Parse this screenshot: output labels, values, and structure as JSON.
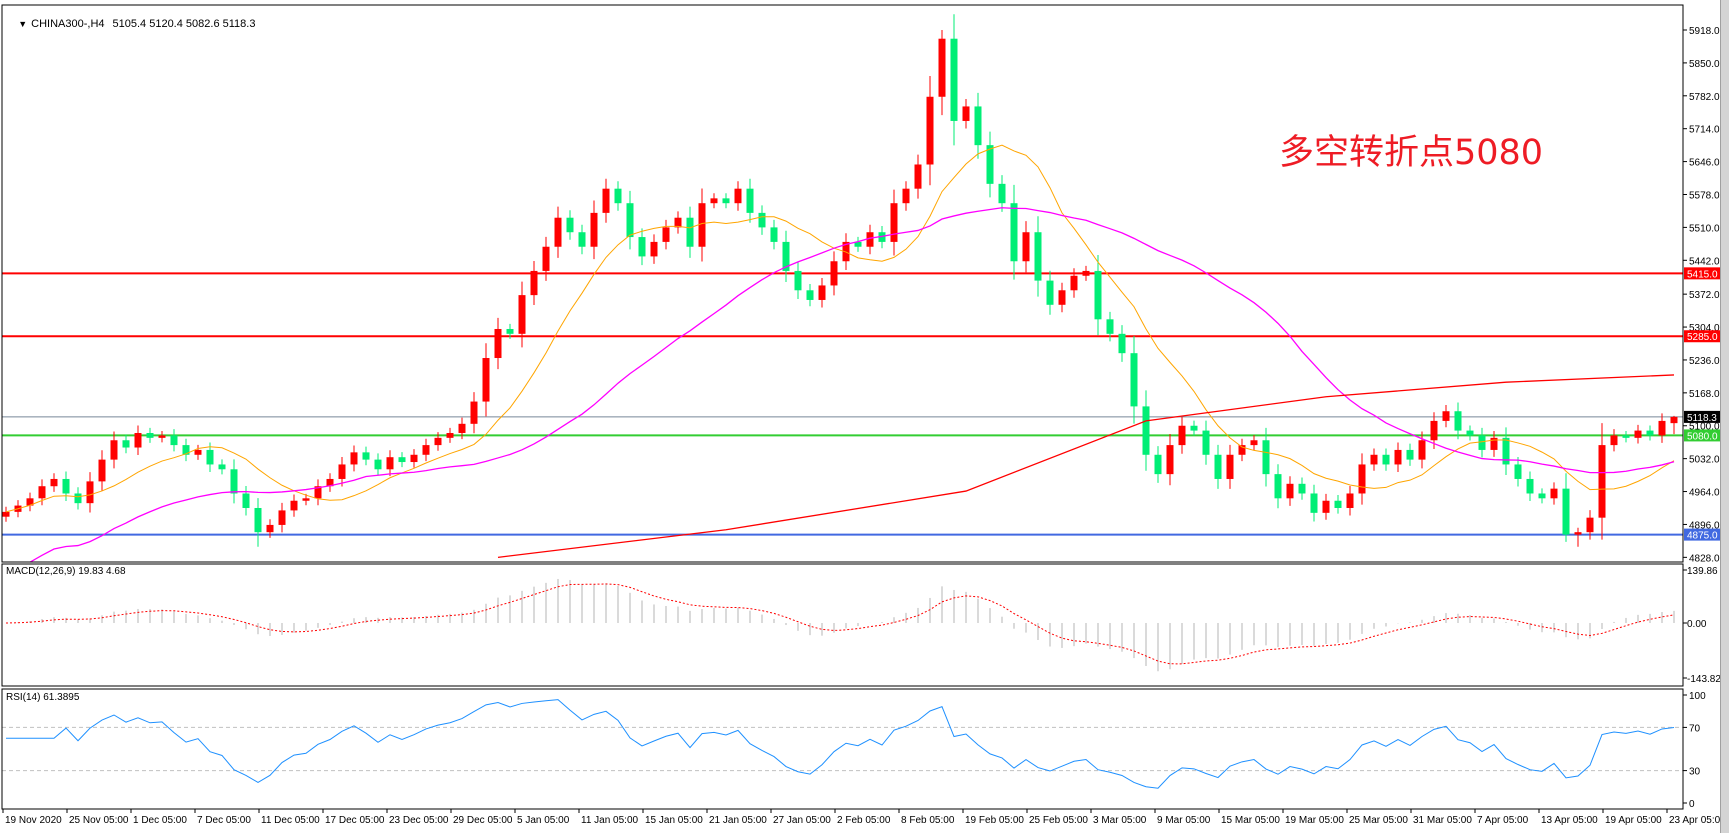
{
  "header": {
    "symbol": "CHINA300-,H4",
    "ohlc": "5105.4 5120.4 5082.6 5118.3",
    "menu_icon": "triangle-down-icon"
  },
  "annotation": {
    "text": "多空转折点5080",
    "color": "#ee1c25"
  },
  "chart_data": {
    "type": "candlestick",
    "title": "CHINA300-,H4",
    "colors": {
      "up": "#ff0000",
      "down": "#00ee76",
      "wick_up": "#ff0000",
      "wick_down": "#00ee76"
    },
    "candles": {
      "close": [
        4922,
        4935,
        4950,
        4975,
        4990,
        4960,
        4940,
        4985,
        5030,
        5070,
        5055,
        5085,
        5075,
        5080,
        5060,
        5040,
        5050,
        5020,
        5010,
        4960,
        4930,
        4880,
        4895,
        4925,
        4945,
        4950,
        4975,
        4990,
        5020,
        5045,
        5030,
        5010,
        5035,
        5025,
        5040,
        5060,
        5075,
        5085,
        5104,
        5150,
        5240,
        5300,
        5290,
        5370,
        5420,
        5470,
        5530,
        5500,
        5470,
        5540,
        5590,
        5560,
        5490,
        5450,
        5480,
        5510,
        5530,
        5470,
        5560,
        5570,
        5560,
        5590,
        5540,
        5510,
        5480,
        5420,
        5380,
        5360,
        5390,
        5440,
        5480,
        5470,
        5500,
        5480,
        5560,
        5590,
        5640,
        5780,
        5900,
        5730,
        5760,
        5680,
        5600,
        5560,
        5440,
        5500,
        5400,
        5350,
        5380,
        5410,
        5420,
        5320,
        5290,
        5250,
        5140,
        5040,
        5000,
        5060,
        5100,
        5090,
        5040,
        4990,
        5040,
        5060,
        5070,
        5000,
        4950,
        4980,
        4960,
        4920,
        4945,
        4930,
        4960,
        5020,
        5040,
        5020,
        5050,
        5030,
        5070,
        5110,
        5130,
        5090,
        5080,
        5050,
        5075,
        5020,
        4990,
        4960,
        4950,
        4970,
        4875,
        4880,
        4910,
        5060,
        5080,
        5075,
        5090,
        5080,
        5110,
        5118.3
      ],
      "last": {
        "open": 5105.4,
        "high": 5120.4,
        "low": 5082.6,
        "close": 5118.3
      },
      "peak_high": 5918,
      "low_marks": [
        {
          "near_close": 4880,
          "low": 4850
        },
        {
          "near_close": 4875,
          "low": 4860
        }
      ]
    },
    "price_axis": {
      "range": [
        4828,
        5918
      ],
      "ticks": [
        "5918.0",
        "5850.0",
        "5782.0",
        "5714.0",
        "5646.0",
        "5578.0",
        "5510.0",
        "5442.0",
        "5372.0",
        "5304.0",
        "5236.0",
        "5168.0",
        "5100.0",
        "5032.0",
        "4964.0",
        "4896.0",
        "4828.0"
      ]
    },
    "levels": [
      {
        "value": 5415,
        "label": "5415.0",
        "color": "#ff0000",
        "text_color": "#ffffff"
      },
      {
        "value": 5285,
        "label": "5285.0",
        "color": "#ff0000",
        "text_color": "#ffffff"
      },
      {
        "value": 5118.3,
        "label": "5118.3",
        "color": "#000000",
        "line_color": "#778899",
        "text_color": "#ffffff"
      },
      {
        "value": 5080,
        "label": "5080.0",
        "color": "#32cd32",
        "text_color": "#ffffff"
      },
      {
        "value": 4875,
        "label": "4875.0",
        "color": "#4169e1",
        "text_color": "#ffffff"
      }
    ],
    "moving_averages": [
      {
        "color": "#ffa500"
      },
      {
        "color": "#ff00ff"
      },
      {
        "color": "#ff0000",
        "values": [
          [
            41,
            4828
          ],
          [
            60,
            4885
          ],
          [
            80,
            4965
          ],
          [
            95,
            5110
          ],
          [
            110,
            5160
          ],
          [
            125,
            5190
          ],
          [
            139,
            5205
          ]
        ]
      }
    ],
    "time_axis": {
      "labels": [
        "19 Nov 2020",
        "25 Nov 05:00",
        "1 Dec 05:00",
        "7 Dec 05:00",
        "11 Dec 05:00",
        "17 Dec 05:00",
        "23 Dec 05:00",
        "29 Dec 05:00",
        "5 Jan 05:00",
        "11 Jan 05:00",
        "15 Jan 05:00",
        "21 Jan 05:00",
        "27 Jan 05:00",
        "2 Feb 05:00",
        "8 Feb 05:00",
        "19 Feb 05:00",
        "25 Feb 05:00",
        "3 Mar 05:00",
        "9 Mar 05:00",
        "15 Mar 05:00",
        "19 Mar 05:00",
        "25 Mar 05:00",
        "31 Mar 05:00",
        "7 Apr 05:00",
        "13 Apr 05:00",
        "19 Apr 05:00",
        "23 Apr 05:00"
      ]
    },
    "indicators": {
      "macd": {
        "label": "MACD(12,26,9) 19.83 4.68",
        "range": [
          -143.82,
          139.86
        ],
        "ticks": [
          "139.86",
          "0.00",
          "-143.82"
        ],
        "histogram_color": "#c0c0c0",
        "signal_color": "#ff0000"
      },
      "rsi": {
        "label": "RSI(14) 61.3895",
        "range": [
          0,
          100
        ],
        "ticks": [
          "100",
          "70",
          "30",
          "0"
        ],
        "levels": [
          70,
          30
        ],
        "line_color": "#1e90ff",
        "level_color": "#c0c0c0"
      }
    }
  }
}
